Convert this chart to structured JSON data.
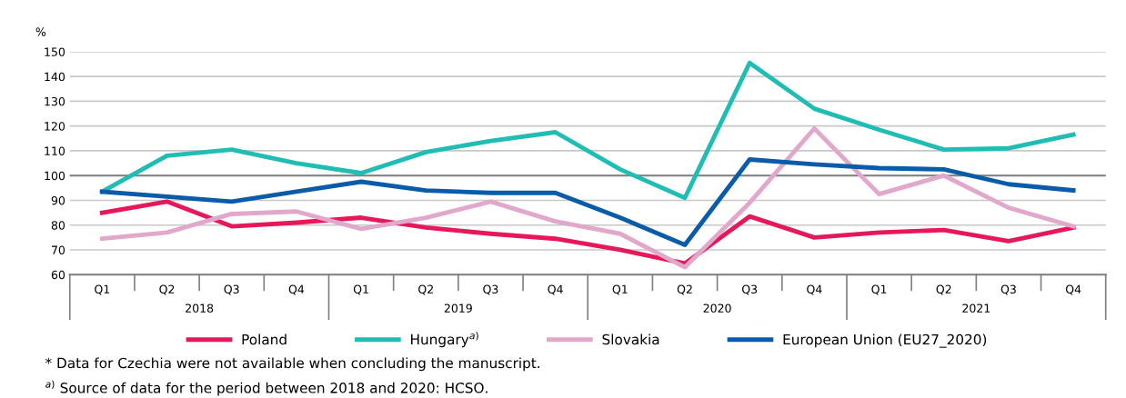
{
  "chart_data": {
    "type": "line",
    "ylabel": "%",
    "categories": [
      "Q1",
      "Q2",
      "Q3",
      "Q4",
      "Q1",
      "Q2",
      "Q3",
      "Q4",
      "Q1",
      "Q2",
      "Q3",
      "Q4",
      "Q1",
      "Q2",
      "Q3",
      "Q4"
    ],
    "series": [
      {
        "name": "Poland",
        "color": "#e6185a",
        "values": [
          85,
          89.5,
          79.5,
          81,
          83,
          79,
          76.5,
          74.5,
          70,
          64.5,
          83.5,
          75,
          77,
          78,
          73.5,
          79
        ]
      },
      {
        "name": "Hungary$^{a)}$",
        "color": "#20bdb5",
        "values": [
          93.5,
          108,
          110.5,
          105,
          101,
          109.5,
          114,
          117.5,
          102.5,
          91,
          145.5,
          127,
          118.5,
          110.5,
          111,
          116.5
        ]
      },
      {
        "name": "Slovakia",
        "color": "#e2a8cb",
        "values": [
          74.5,
          77,
          84.5,
          85.5,
          78.5,
          83,
          89.5,
          81.5,
          76.5,
          63,
          89,
          119,
          92.5,
          100,
          87,
          79.5
        ]
      },
      {
        "name": "European Union (EU27_2020)",
        "color": "#0a5ca8",
        "values": [
          93.5,
          91.5,
          89.5,
          93.5,
          97.5,
          94,
          93,
          93,
          83,
          72,
          106.5,
          104.5,
          103,
          102.5,
          96.5,
          94
        ]
      }
    ],
    "ylim": [
      60,
      150
    ],
    "yticks": [
      60,
      70,
      80,
      90,
      100,
      110,
      120,
      130,
      140,
      150
    ],
    "grid": "y",
    "legend": "bottom",
    "marker": "none",
    "line_style": "solid",
    "ref_lines": [
      {
        "axis": "y",
        "value": 100,
        "color": "#808080"
      }
    ],
    "annotations": [
      {
        "text": "2018"
      },
      {
        "text": "2019"
      },
      {
        "text": "2020"
      },
      {
        "text": "2021"
      },
      "* Data for Czechia were not available when concluding the manuscript.",
      "$^{a)}$ Source of data for the period between 2018 and 2020: HCSO."
    ]
  }
}
